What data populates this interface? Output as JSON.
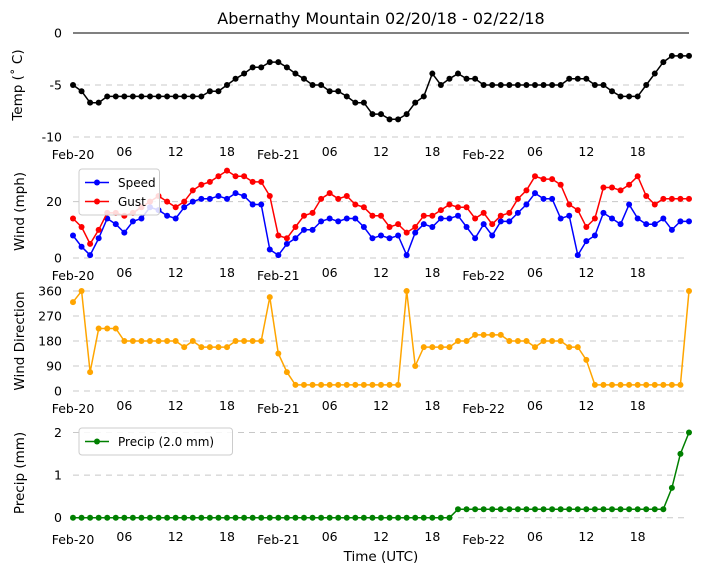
{
  "chart_data": {
    "title": "Abernathy Mountain 02/20/18 - 02/22/18",
    "xlabel": "Time (UTC)",
    "x_tick_labels": [
      "Feb-20",
      "06",
      "12",
      "18",
      "Feb-21",
      "06",
      "12",
      "18",
      "Feb-22",
      "06",
      "12",
      "18"
    ],
    "x_tick_hours": [
      0,
      6,
      12,
      18,
      24,
      30,
      36,
      42,
      48,
      54,
      60,
      66
    ],
    "panels": [
      {
        "id": "temp",
        "type": "line",
        "ylabel": "Temp ($^\\circ$C)",
        "ylabel_display": "Temp (˚ C)",
        "ylim": [
          -10,
          0
        ],
        "yticks": [
          0,
          -5,
          -10
        ],
        "hline_at_zero": true,
        "series": [
          {
            "name": "Temp",
            "color": "#000000",
            "values": [
              -5.0,
              -5.6,
              -6.7,
              -6.7,
              -6.1,
              -6.1,
              -6.1,
              -6.1,
              -6.1,
              -6.1,
              -6.1,
              -6.1,
              -6.1,
              -6.1,
              -6.1,
              -6.1,
              -5.6,
              -5.6,
              -5.0,
              -4.4,
              -3.9,
              -3.3,
              -3.3,
              -2.8,
              -2.8,
              -3.3,
              -3.9,
              -4.4,
              -5.0,
              -5.0,
              -5.6,
              -5.6,
              -6.1,
              -6.7,
              -6.7,
              -7.8,
              -7.8,
              -8.3,
              -8.3,
              -7.8,
              -6.7,
              -6.1,
              -3.9,
              -5.0,
              -4.4,
              -3.9,
              -4.4,
              -4.4,
              -5.0,
              -5.0,
              -5.0,
              -5.0,
              -5.0,
              -5.0,
              -5.0,
              -5.0,
              -5.0,
              -5.0,
              -4.4,
              -4.4,
              -4.4,
              -5.0,
              -5.0,
              -5.6,
              -6.1,
              -6.1,
              -6.1,
              -5.0,
              -3.9,
              -2.8,
              -2.2,
              -2.2,
              -2.2
            ]
          }
        ]
      },
      {
        "id": "wind",
        "type": "line",
        "ylabel": "Wind (mph)",
        "ylim": [
          0,
          33
        ],
        "yticks": [
          0,
          20
        ],
        "legend": "top-left",
        "series": [
          {
            "name": "Speed",
            "color": "#0000ff",
            "values": [
              8,
              4,
              1,
              7,
              14,
              12,
              9,
              13,
              14,
              18,
              17,
              15,
              14,
              18,
              20,
              21,
              21,
              22,
              21,
              23,
              22,
              19,
              19,
              3,
              1,
              5,
              7,
              10,
              10,
              13,
              14,
              13,
              14,
              14,
              11,
              7,
              8,
              7,
              8,
              1,
              9,
              12,
              11,
              14,
              14,
              15,
              11,
              7,
              12,
              8,
              13,
              13,
              16,
              19,
              23,
              21,
              21,
              14,
              15,
              1,
              6,
              8,
              16,
              14,
              12,
              19,
              14,
              12,
              12,
              14,
              10,
              13,
              13
            ]
          },
          {
            "name": "Gust",
            "color": "#ff0000",
            "values": [
              14,
              11,
              5,
              10,
              16,
              16,
              15,
              16,
              18,
              20,
              22,
              20,
              18,
              20,
              24,
              26,
              27,
              29,
              31,
              29,
              29,
              27,
              27,
              22,
              8,
              7,
              11,
              15,
              16,
              21,
              23,
              21,
              22,
              19,
              18,
              15,
              15,
              11,
              12,
              9,
              11,
              15,
              15,
              17,
              19,
              18,
              18,
              14,
              16,
              12,
              15,
              16,
              21,
              24,
              29,
              28,
              28,
              26,
              19,
              17,
              11,
              14,
              25,
              25,
              24,
              26,
              29,
              22,
              19,
              21,
              21,
              21,
              21
            ]
          }
        ]
      },
      {
        "id": "direction",
        "type": "line",
        "ylabel": "Wind Direction",
        "ylim": [
          0,
          360
        ],
        "yticks": [
          0,
          90,
          180,
          270,
          360
        ],
        "series": [
          {
            "name": "Direction",
            "color": "#ffa500",
            "values": [
              320,
              360,
              68,
              225,
              225,
              225,
              180,
              180,
              180,
              180,
              180,
              180,
              180,
              158,
              180,
              158,
              158,
              158,
              158,
              180,
              180,
              180,
              180,
              338,
              135,
              68,
              22,
              22,
              22,
              22,
              22,
              22,
              22,
              22,
              22,
              22,
              22,
              22,
              22,
              360,
              90,
              158,
              158,
              158,
              158,
              180,
              180,
              202,
              202,
              202,
              202,
              180,
              180,
              180,
              158,
              180,
              180,
              180,
              158,
              158,
              112,
              22,
              22,
              22,
              22,
              22,
              22,
              22,
              22,
              22,
              22,
              22,
              360
            ]
          }
        ]
      },
      {
        "id": "precip",
        "type": "line",
        "ylabel": "Precip (mm)",
        "ylim": [
          -0.1,
          2.2
        ],
        "yticks": [
          0,
          1,
          2
        ],
        "legend": "top-left",
        "series": [
          {
            "name": "Precip (2.0 mm)",
            "color": "#008000",
            "values": [
              0,
              0,
              0,
              0,
              0,
              0,
              0,
              0,
              0,
              0,
              0,
              0,
              0,
              0,
              0,
              0,
              0,
              0,
              0,
              0,
              0,
              0,
              0,
              0,
              0,
              0,
              0,
              0,
              0,
              0,
              0,
              0,
              0,
              0,
              0,
              0,
              0,
              0,
              0,
              0,
              0,
              0,
              0,
              0,
              0,
              0.2,
              0.2,
              0.2,
              0.2,
              0.2,
              0.2,
              0.2,
              0.2,
              0.2,
              0.2,
              0.2,
              0.2,
              0.2,
              0.2,
              0.2,
              0.2,
              0.2,
              0.2,
              0.2,
              0.2,
              0.2,
              0.2,
              0.2,
              0.2,
              0.2,
              0.7,
              1.5,
              2.0
            ]
          }
        ]
      }
    ]
  }
}
